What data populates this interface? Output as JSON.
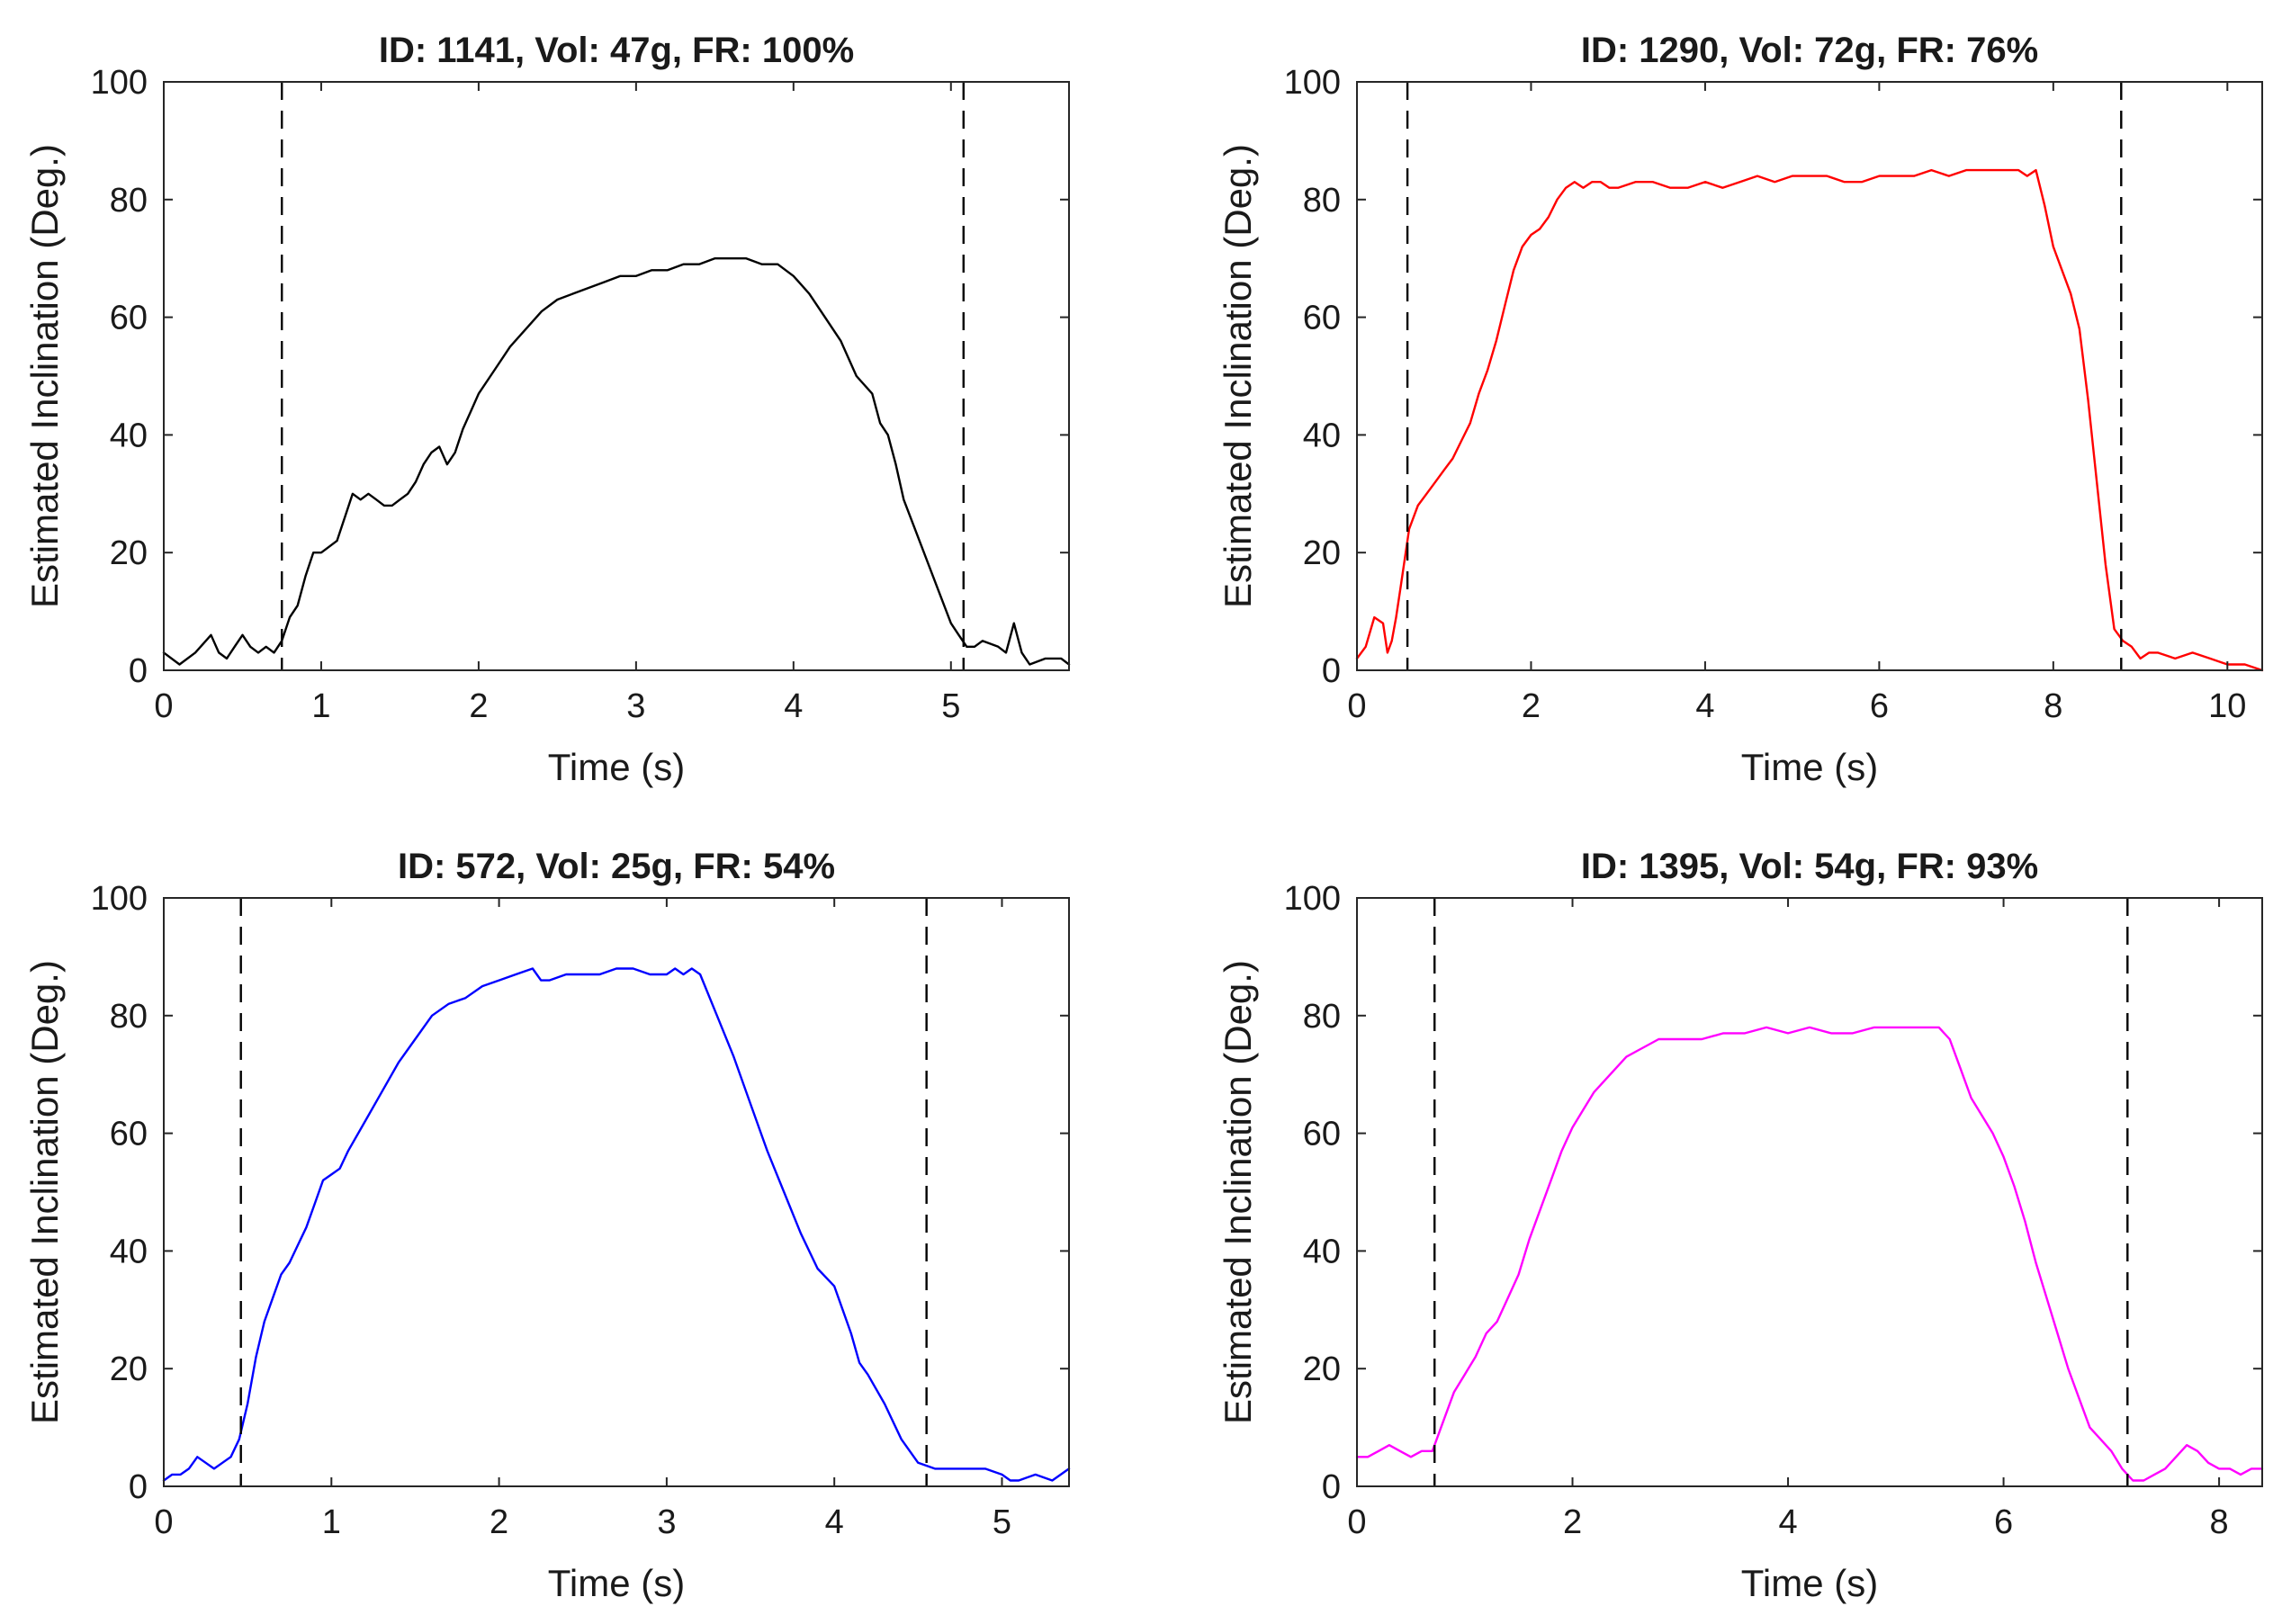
{
  "figure": {
    "background": "#ffffff"
  },
  "chart_data": [
    {
      "type": "line",
      "title": "ID: 1141, Vol: 47g, FR: 100%",
      "xlabel": "Time (s)",
      "ylabel": "Estimated Inclination (Deg.)",
      "xlim": [
        0,
        5.75
      ],
      "ylim": [
        0,
        100
      ],
      "xticks": [
        0,
        1,
        2,
        3,
        4,
        5
      ],
      "yticks": [
        0,
        20,
        40,
        60,
        80,
        100
      ],
      "grid": false,
      "markers": [
        0.75,
        5.08
      ],
      "series": [
        {
          "name": "inclination",
          "color": "#000000",
          "x": [
            0,
            0.1,
            0.2,
            0.3,
            0.35,
            0.4,
            0.45,
            0.5,
            0.55,
            0.6,
            0.65,
            0.7,
            0.75,
            0.8,
            0.85,
            0.9,
            0.95,
            1.0,
            1.05,
            1.1,
            1.15,
            1.2,
            1.25,
            1.3,
            1.35,
            1.4,
            1.45,
            1.5,
            1.55,
            1.6,
            1.65,
            1.7,
            1.75,
            1.8,
            1.85,
            1.9,
            1.95,
            2.0,
            2.1,
            2.2,
            2.3,
            2.4,
            2.5,
            2.6,
            2.7,
            2.8,
            2.9,
            3.0,
            3.1,
            3.2,
            3.3,
            3.4,
            3.5,
            3.6,
            3.7,
            3.8,
            3.9,
            4.0,
            4.1,
            4.2,
            4.3,
            4.4,
            4.5,
            4.55,
            4.6,
            4.65,
            4.7,
            4.8,
            4.9,
            5.0,
            5.05,
            5.1,
            5.15,
            5.2,
            5.3,
            5.35,
            5.4,
            5.45,
            5.5,
            5.6,
            5.7,
            5.75
          ],
          "y": [
            3,
            1,
            3,
            6,
            3,
            2,
            4,
            6,
            4,
            3,
            4,
            3,
            5,
            9,
            11,
            16,
            20,
            20,
            21,
            22,
            26,
            30,
            29,
            30,
            29,
            28,
            28,
            29,
            30,
            32,
            35,
            37,
            38,
            35,
            37,
            41,
            44,
            47,
            51,
            55,
            58,
            61,
            63,
            64,
            65,
            66,
            67,
            67,
            68,
            68,
            69,
            69,
            70,
            70,
            70,
            69,
            69,
            67,
            64,
            60,
            56,
            50,
            47,
            42,
            40,
            35,
            29,
            22,
            15,
            8,
            6,
            4,
            4,
            5,
            4,
            3,
            8,
            3,
            1,
            2,
            2,
            1
          ]
        }
      ]
    },
    {
      "type": "line",
      "title": "ID: 1290, Vol: 72g, FR: 76%",
      "xlabel": "Time (s)",
      "ylabel": "Estimated Inclination (Deg.)",
      "xlim": [
        0,
        10.4
      ],
      "ylim": [
        0,
        100
      ],
      "xticks": [
        0,
        2,
        4,
        6,
        8,
        10
      ],
      "yticks": [
        0,
        20,
        40,
        60,
        80,
        100
      ],
      "grid": false,
      "markers": [
        0.58,
        8.78
      ],
      "series": [
        {
          "name": "inclination",
          "color": "#ff0000",
          "x": [
            0,
            0.1,
            0.2,
            0.3,
            0.35,
            0.4,
            0.45,
            0.5,
            0.55,
            0.6,
            0.7,
            0.8,
            0.9,
            1.0,
            1.1,
            1.2,
            1.3,
            1.4,
            1.5,
            1.6,
            1.7,
            1.8,
            1.9,
            2.0,
            2.1,
            2.2,
            2.3,
            2.4,
            2.5,
            2.6,
            2.7,
            2.8,
            2.9,
            3.0,
            3.2,
            3.4,
            3.6,
            3.8,
            4.0,
            4.2,
            4.4,
            4.6,
            4.8,
            5.0,
            5.2,
            5.4,
            5.6,
            5.8,
            6.0,
            6.2,
            6.4,
            6.6,
            6.8,
            7.0,
            7.2,
            7.4,
            7.6,
            7.7,
            7.8,
            7.9,
            8.0,
            8.1,
            8.2,
            8.3,
            8.4,
            8.5,
            8.6,
            8.7,
            8.8,
            8.9,
            9.0,
            9.1,
            9.2,
            9.4,
            9.6,
            9.8,
            10.0,
            10.2,
            10.4
          ],
          "y": [
            2,
            4,
            9,
            8,
            3,
            5,
            9,
            14,
            19,
            24,
            28,
            30,
            32,
            34,
            36,
            39,
            42,
            47,
            51,
            56,
            62,
            68,
            72,
            74,
            75,
            77,
            80,
            82,
            83,
            82,
            83,
            83,
            82,
            82,
            83,
            83,
            82,
            82,
            83,
            82,
            83,
            84,
            83,
            84,
            84,
            84,
            83,
            83,
            84,
            84,
            84,
            85,
            84,
            85,
            85,
            85,
            85,
            84,
            85,
            79,
            72,
            68,
            64,
            58,
            46,
            32,
            18,
            7,
            5,
            4,
            2,
            3,
            3,
            2,
            3,
            2,
            1,
            1,
            0
          ]
        }
      ]
    },
    {
      "type": "line",
      "title": "ID: 572, Vol: 25g, FR: 54%",
      "xlabel": "Time (s)",
      "ylabel": "Estimated Inclination (Deg.)",
      "xlim": [
        0,
        5.4
      ],
      "ylim": [
        0,
        100
      ],
      "xticks": [
        0,
        1,
        2,
        3,
        4,
        5
      ],
      "yticks": [
        0,
        20,
        40,
        60,
        80,
        100
      ],
      "grid": false,
      "markers": [
        0.46,
        4.55
      ],
      "series": [
        {
          "name": "inclination",
          "color": "#0000ff",
          "x": [
            0,
            0.05,
            0.1,
            0.15,
            0.2,
            0.25,
            0.3,
            0.35,
            0.4,
            0.45,
            0.5,
            0.55,
            0.6,
            0.65,
            0.7,
            0.75,
            0.8,
            0.85,
            0.9,
            0.95,
            1.0,
            1.05,
            1.1,
            1.2,
            1.3,
            1.4,
            1.5,
            1.6,
            1.7,
            1.8,
            1.9,
            2.0,
            2.1,
            2.2,
            2.25,
            2.3,
            2.4,
            2.5,
            2.6,
            2.7,
            2.8,
            2.9,
            3.0,
            3.05,
            3.1,
            3.15,
            3.2,
            3.3,
            3.4,
            3.5,
            3.6,
            3.7,
            3.8,
            3.9,
            4.0,
            4.05,
            4.1,
            4.15,
            4.2,
            4.3,
            4.4,
            4.5,
            4.6,
            4.7,
            4.8,
            4.9,
            5.0,
            5.05,
            5.1,
            5.2,
            5.3,
            5.4
          ],
          "y": [
            1,
            2,
            2,
            3,
            5,
            4,
            3,
            4,
            5,
            8,
            14,
            22,
            28,
            32,
            36,
            38,
            41,
            44,
            48,
            52,
            53,
            54,
            57,
            62,
            67,
            72,
            76,
            80,
            82,
            83,
            85,
            86,
            87,
            88,
            86,
            86,
            87,
            87,
            87,
            88,
            88,
            87,
            87,
            88,
            87,
            88,
            87,
            80,
            73,
            65,
            57,
            50,
            43,
            37,
            34,
            30,
            26,
            21,
            19,
            14,
            8,
            4,
            3,
            3,
            3,
            3,
            2,
            1,
            1,
            2,
            1,
            3
          ]
        }
      ]
    },
    {
      "type": "line",
      "title": "ID: 1395, Vol: 54g, FR: 93%",
      "xlabel": "Time (s)",
      "ylabel": "Estimated Inclination (Deg.)",
      "xlim": [
        0,
        8.4
      ],
      "ylim": [
        0,
        100
      ],
      "xticks": [
        0,
        2,
        4,
        6,
        8
      ],
      "yticks": [
        0,
        20,
        40,
        60,
        80,
        100
      ],
      "grid": false,
      "markers": [
        0.72,
        7.15
      ],
      "series": [
        {
          "name": "inclination",
          "color": "#ff00ff",
          "x": [
            0,
            0.1,
            0.2,
            0.3,
            0.4,
            0.5,
            0.6,
            0.7,
            0.8,
            0.9,
            1.0,
            1.1,
            1.2,
            1.3,
            1.4,
            1.5,
            1.6,
            1.7,
            1.8,
            1.9,
            2.0,
            2.1,
            2.2,
            2.3,
            2.4,
            2.5,
            2.6,
            2.7,
            2.8,
            2.9,
            3.0,
            3.2,
            3.4,
            3.6,
            3.8,
            4.0,
            4.2,
            4.4,
            4.6,
            4.8,
            5.0,
            5.2,
            5.4,
            5.5,
            5.6,
            5.7,
            5.8,
            5.9,
            6.0,
            6.1,
            6.2,
            6.3,
            6.4,
            6.5,
            6.6,
            6.7,
            6.8,
            6.9,
            7.0,
            7.1,
            7.2,
            7.3,
            7.4,
            7.5,
            7.6,
            7.7,
            7.8,
            7.9,
            8.0,
            8.1,
            8.2,
            8.3,
            8.4
          ],
          "y": [
            5,
            5,
            6,
            7,
            6,
            5,
            6,
            6,
            11,
            16,
            19,
            22,
            26,
            28,
            32,
            36,
            42,
            47,
            52,
            57,
            61,
            64,
            67,
            69,
            71,
            73,
            74,
            75,
            76,
            76,
            76,
            76,
            77,
            77,
            78,
            77,
            78,
            77,
            77,
            78,
            78,
            78,
            78,
            76,
            71,
            66,
            63,
            60,
            56,
            51,
            45,
            38,
            32,
            26,
            20,
            15,
            10,
            8,
            6,
            3,
            1,
            1,
            2,
            3,
            5,
            7,
            6,
            4,
            3,
            3,
            2,
            3,
            3
          ]
        }
      ]
    }
  ]
}
